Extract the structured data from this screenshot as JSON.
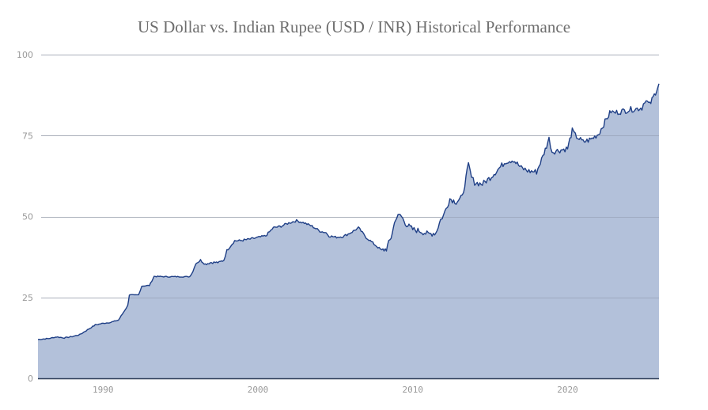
{
  "chart_data": {
    "type": "area",
    "title": "US Dollar vs. Indian Rupee (USD / INR) Historical Performance",
    "xlabel": "",
    "ylabel": "",
    "ylim": [
      0,
      100
    ],
    "xlim": [
      1985.8,
      2025.9
    ],
    "yticks": [
      0,
      25,
      50,
      75,
      100
    ],
    "xticks": [
      1990,
      2000,
      2010,
      2020
    ],
    "grid": true,
    "legend": null,
    "series": [
      {
        "name": "USD / INR",
        "color": "#1f3f86",
        "fill": "#b3c1da",
        "x": [
          1985.8,
          1986.5,
          1987.0,
          1987.5,
          1988.0,
          1988.5,
          1989.0,
          1989.5,
          1990.0,
          1990.5,
          1991.0,
          1991.4,
          1991.6,
          1991.7,
          1992.0,
          1992.3,
          1992.5,
          1993.0,
          1993.3,
          1994.0,
          1995.0,
          1995.6,
          1995.8,
          1996.0,
          1996.3,
          1996.6,
          1997.0,
          1997.5,
          1997.8,
          1998.0,
          1998.5,
          1998.8,
          1999.5,
          2000.0,
          2000.5,
          2001.0,
          2001.5,
          2002.0,
          2002.5,
          2003.0,
          2003.5,
          2004.0,
          2004.4,
          2004.6,
          2005.0,
          2005.5,
          2006.0,
          2006.5,
          2007.0,
          2007.5,
          2008.0,
          2008.3,
          2008.6,
          2008.9,
          2009.2,
          2009.6,
          2010.0,
          2010.5,
          2011.0,
          2011.5,
          2011.8,
          2012.0,
          2012.4,
          2012.8,
          2013.2,
          2013.6,
          2013.8,
          2014.0,
          2014.5,
          2015.0,
          2015.5,
          2016.0,
          2016.5,
          2017.0,
          2017.5,
          2018.0,
          2018.4,
          2018.8,
          2019.0,
          2019.5,
          2020.0,
          2020.3,
          2020.5,
          2021.0,
          2021.5,
          2022.0,
          2022.5,
          2022.8,
          2023.0,
          2023.5,
          2024.0,
          2024.5,
          2024.8,
          2025.0,
          2025.3,
          2025.6,
          2025.9
        ],
        "values": [
          12.0,
          12.3,
          12.8,
          12.5,
          12.9,
          13.5,
          15.0,
          16.5,
          17.0,
          17.3,
          18.0,
          21.0,
          22.5,
          25.8,
          25.7,
          25.8,
          28.5,
          28.7,
          31.5,
          31.4,
          31.4,
          31.4,
          33.0,
          35.5,
          36.5,
          35.3,
          35.8,
          35.8,
          36.5,
          39.5,
          42.5,
          42.5,
          43.0,
          43.5,
          44.0,
          46.5,
          47.0,
          48.0,
          48.7,
          48.0,
          47.0,
          45.5,
          45.0,
          44.0,
          43.6,
          43.8,
          45.0,
          46.5,
          43.5,
          41.5,
          39.5,
          40.0,
          43.5,
          49.5,
          50.5,
          47.5,
          46.0,
          45.5,
          44.5,
          45.0,
          49.0,
          50.5,
          55.5,
          54.5,
          56.0,
          66.0,
          62.0,
          60.5,
          60.0,
          62.0,
          64.5,
          67.0,
          67.5,
          65.0,
          64.0,
          63.8,
          68.5,
          74.0,
          70.0,
          70.5,
          71.0,
          76.5,
          75.0,
          73.0,
          73.8,
          75.5,
          80.0,
          82.5,
          82.0,
          82.5,
          83.0,
          83.3,
          83.6,
          86.0,
          84.5,
          87.5,
          91.0
        ]
      }
    ]
  },
  "axes": {
    "y_labels": [
      "0",
      "25",
      "50",
      "75",
      "100"
    ],
    "x_labels": [
      "1990",
      "2000",
      "2010",
      "2020"
    ]
  }
}
